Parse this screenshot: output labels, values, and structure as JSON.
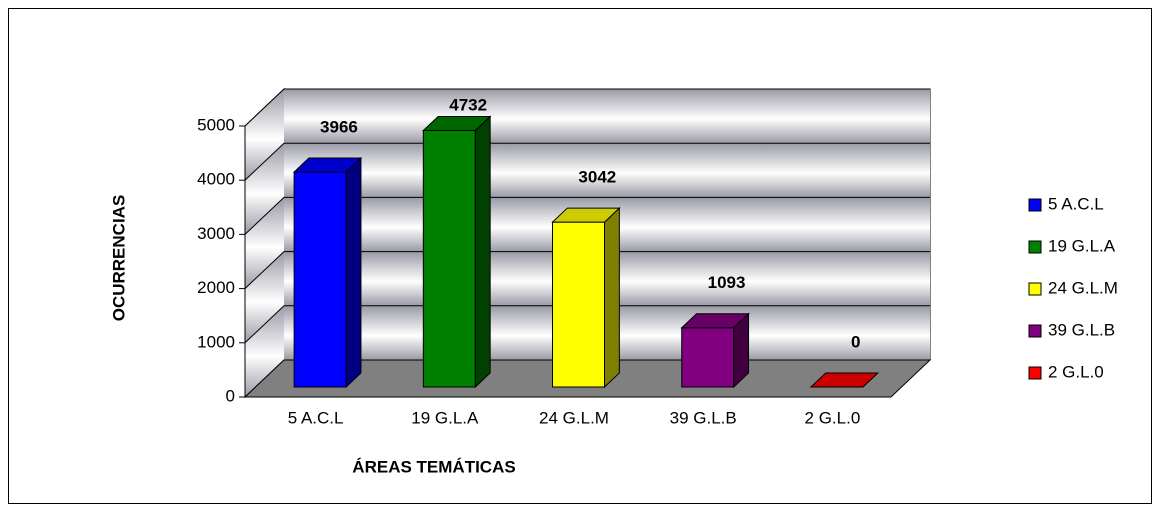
{
  "chart_data": {
    "type": "bar3d",
    "xlabel": "ÁREAS TEMÁTICAS",
    "ylabel": "OCURRENCIAS",
    "categories": [
      "5 A.C.L",
      "19 G.L.A",
      "24 G.L.M",
      "39 G.L.B",
      "2 G.L.0"
    ],
    "values": [
      3966,
      4732,
      3042,
      1093,
      0
    ],
    "colors": [
      "#0000ff",
      "#008000",
      "#ffff00",
      "#800080",
      "#ff0000"
    ],
    "ylim": [
      0,
      5000
    ],
    "yticks": [
      0,
      1000,
      2000,
      3000,
      4000,
      5000
    ],
    "grid": true,
    "legend": "right"
  }
}
